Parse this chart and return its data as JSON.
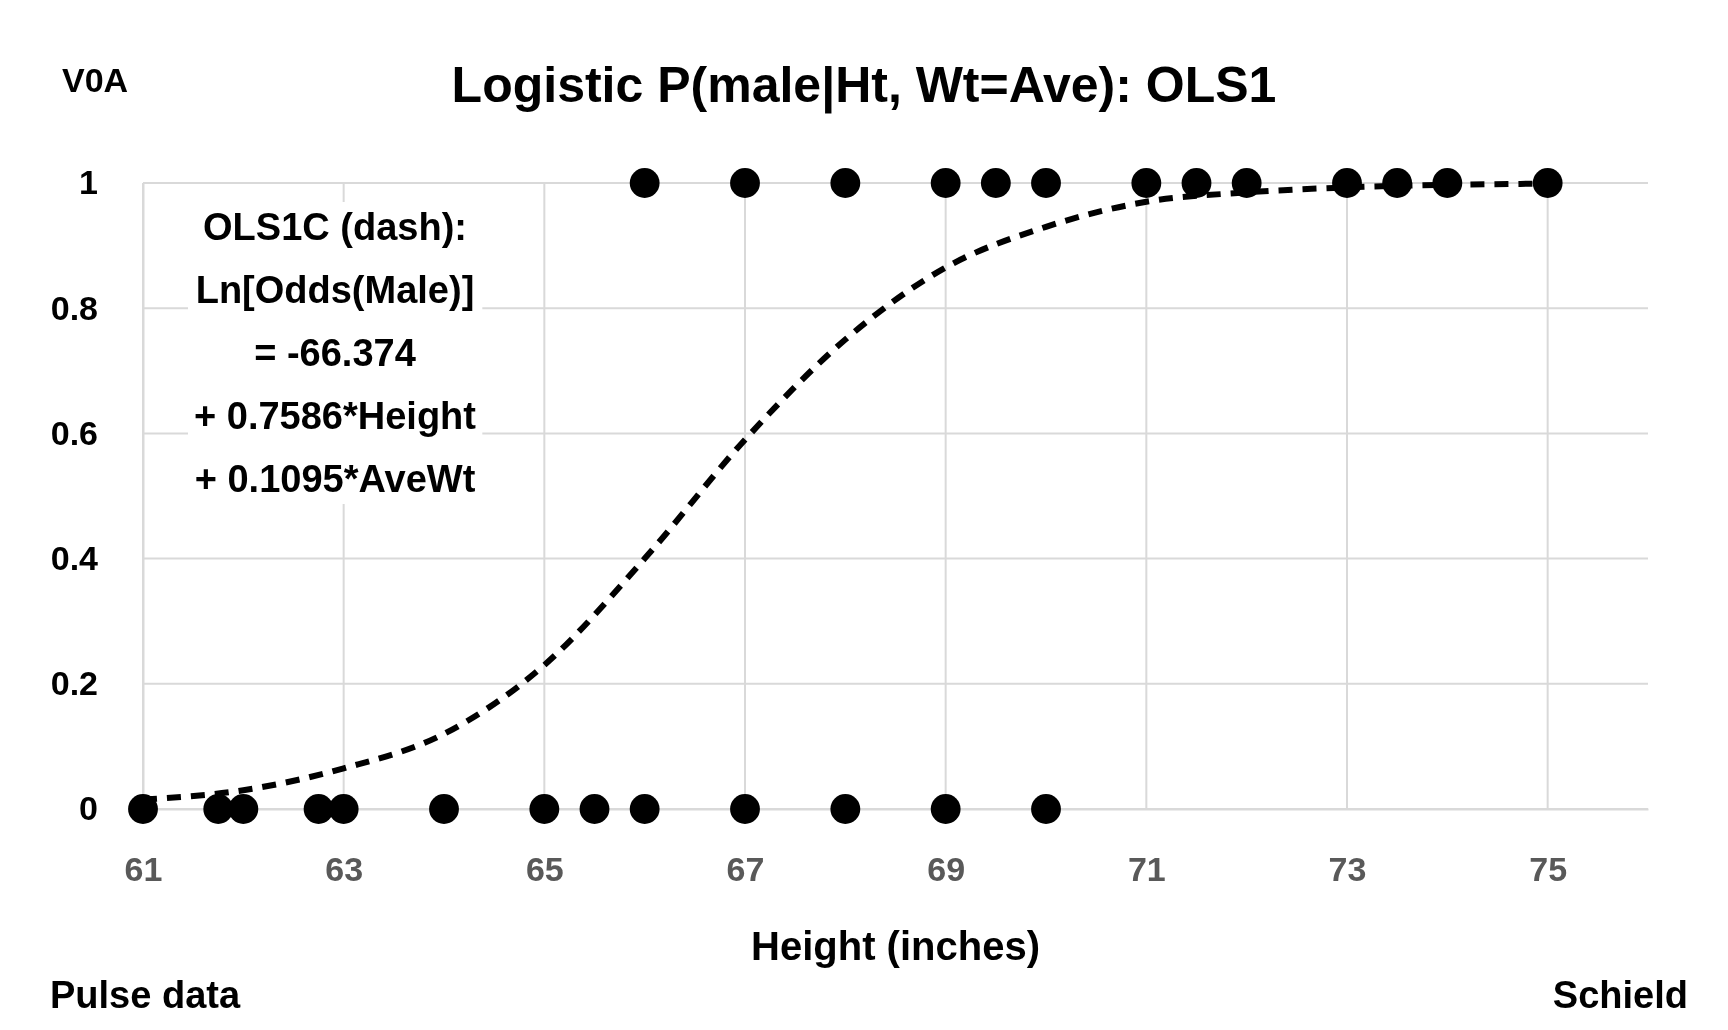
{
  "chart_data": {
    "type": "scatter",
    "title": "Logistic P(male|Ht, Wt=Ave): OLS1",
    "xlabel": "Height (inches)",
    "annotations": [
      "V0A",
      "OLS1C (dash):\nLn[Odds(Male)]\n= -66.374\n+ 0.7586*Height\n+ 0.1095*AveWt",
      "Pulse data",
      "Schield"
    ],
    "xlim": [
      61,
      76
    ],
    "xticks": [
      61,
      63,
      65,
      67,
      69,
      71,
      73,
      75
    ],
    "ylim": [
      0,
      1
    ],
    "yticks": [
      0,
      0.2,
      0.4,
      0.6,
      0.8,
      1
    ],
    "grid": true,
    "series": [
      {
        "color": "#000000",
        "marker": "circle",
        "x": [
          61,
          61.75,
          62,
          62.75,
          63,
          64,
          65,
          65.5,
          66,
          67,
          68,
          69,
          70,
          66,
          67,
          68,
          69,
          69.5,
          70,
          71,
          71.5,
          72,
          73,
          73.5,
          74,
          75
        ],
        "values": [
          0,
          0,
          0,
          0,
          0,
          0,
          0,
          0,
          0,
          0,
          0,
          0,
          0,
          1,
          1,
          1,
          1,
          1,
          1,
          1,
          1,
          1,
          1,
          1,
          1,
          1
        ]
      },
      {
        "type": "line",
        "color": "#000000",
        "line_style": "dashed",
        "x": [
          61,
          62,
          63,
          64,
          65,
          66,
          67,
          68,
          69,
          70,
          71,
          72,
          73,
          74,
          75
        ],
        "values": [
          0.015,
          0.03,
          0.065,
          0.12,
          0.23,
          0.4,
          0.59,
          0.75,
          0.865,
          0.93,
          0.97,
          0.985,
          0.993,
          0.997,
          0.999
        ]
      }
    ]
  }
}
